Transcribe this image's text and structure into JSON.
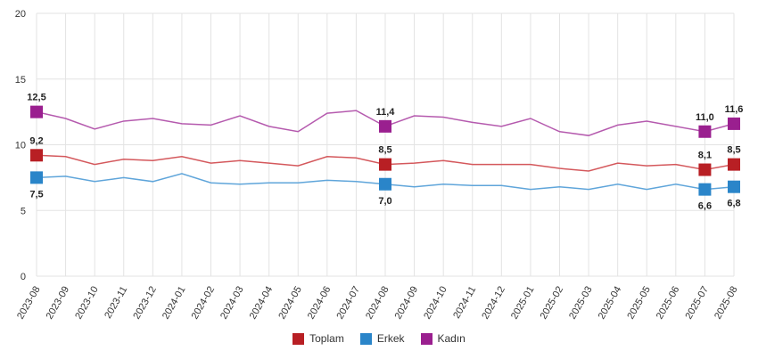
{
  "chart_data": {
    "type": "line",
    "title": "",
    "xlabel": "",
    "ylabel": "",
    "ylim": [
      0,
      20
    ],
    "yticks": [
      0,
      5,
      10,
      15,
      20
    ],
    "grid": true,
    "legend_position": "bottom",
    "categories": [
      "2023-08",
      "2023-09",
      "2023-10",
      "2023-11",
      "2023-12",
      "2024-01",
      "2024-02",
      "2024-03",
      "2024-04",
      "2024-05",
      "2024-06",
      "2024-07",
      "2024-08",
      "2024-09",
      "2024-10",
      "2024-11",
      "2024-12",
      "2025-01",
      "2025-02",
      "2025-03",
      "2025-04",
      "2025-05",
      "2025-06",
      "2025-07",
      "2025-08"
    ],
    "labeled_indices": [
      0,
      12,
      23,
      24
    ],
    "series": [
      {
        "name": "Toplam",
        "color": "#b81f24",
        "line_color": "#d4585c",
        "label_side": "above",
        "values": [
          9.2,
          9.1,
          8.5,
          8.9,
          8.8,
          9.1,
          8.6,
          8.8,
          8.6,
          8.4,
          9.1,
          9.0,
          8.5,
          8.6,
          8.8,
          8.5,
          8.5,
          8.5,
          8.2,
          8.0,
          8.6,
          8.4,
          8.5,
          8.1,
          8.5
        ]
      },
      {
        "name": "Erkek",
        "color": "#2a85c9",
        "line_color": "#5fa5da",
        "label_side": "below",
        "values": [
          7.5,
          7.6,
          7.2,
          7.5,
          7.2,
          7.8,
          7.1,
          7.0,
          7.1,
          7.1,
          7.3,
          7.2,
          7.0,
          6.8,
          7.0,
          6.9,
          6.9,
          6.6,
          6.8,
          6.6,
          7.0,
          6.6,
          7.0,
          6.6,
          6.8
        ]
      },
      {
        "name": "Kadın",
        "color": "#9a1f8f",
        "line_color": "#b55aae",
        "label_side": "above",
        "values": [
          12.5,
          12.0,
          11.2,
          11.8,
          12.0,
          11.6,
          11.5,
          12.2,
          11.4,
          11.0,
          12.4,
          12.6,
          11.4,
          12.2,
          12.1,
          11.7,
          11.4,
          12.0,
          11.0,
          10.7,
          11.5,
          11.8,
          11.4,
          11.0,
          11.6
        ]
      }
    ]
  }
}
